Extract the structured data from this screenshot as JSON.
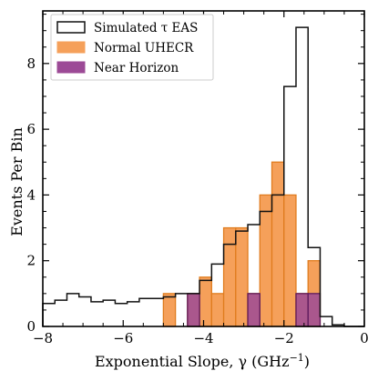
{
  "chart_data": {
    "type": "histogram",
    "xlabel": "Exponential Slope, γ (GHz",
    "xlabel_sup": "−1",
    "xlabel_close": ")",
    "ylabel": "Events Per Bin",
    "xlim": [
      -8,
      0
    ],
    "ylim": [
      0,
      9.6
    ],
    "xticks": [
      -8,
      -6,
      -4,
      -2,
      0
    ],
    "xtick_labels": [
      "−8",
      "−6",
      "−4",
      "−2",
      "0"
    ],
    "yticks": [
      0,
      2,
      4,
      6,
      8
    ],
    "ytick_labels": [
      "0",
      "2",
      "4",
      "6",
      "8"
    ],
    "legend_position": "top-left",
    "bin_edges": [
      -8.0,
      -7.7,
      -7.4,
      -7.1,
      -6.8,
      -6.5,
      -6.2,
      -5.9,
      -5.6,
      -5.3,
      -5.0,
      -4.7,
      -4.4,
      -4.1,
      -3.8,
      -3.5,
      -3.2,
      -2.9,
      -2.6,
      -2.3,
      -2.0,
      -1.7,
      -1.4,
      -1.1,
      -0.8,
      -0.5,
      -0.2,
      0.0
    ],
    "series": [
      {
        "name": "Normal UHECR",
        "style": "filled",
        "color": "#f5a05a",
        "edge_color": "#e07c1e",
        "values": [
          0,
          0,
          0,
          0,
          0,
          0,
          0,
          0,
          0,
          0,
          1,
          0,
          1,
          1.5,
          1,
          3,
          3,
          1,
          4,
          5,
          4,
          1,
          2,
          0,
          0,
          0,
          0
        ]
      },
      {
        "name": "Near Horizon",
        "style": "filled",
        "color": "#9c4a96",
        "edge_color": "#5e1a5c",
        "values": [
          0,
          0,
          0,
          0,
          0,
          0,
          0,
          0,
          0,
          0,
          0,
          0,
          1,
          0,
          0,
          0,
          0,
          1,
          0,
          0,
          0,
          1,
          1,
          0,
          0,
          0,
          0
        ]
      },
      {
        "name": "Simulated τ EAS",
        "style": "step",
        "color": "#111111",
        "values": [
          0.7,
          0.8,
          1.0,
          0.9,
          0.75,
          0.8,
          0.7,
          0.75,
          0.85,
          0.85,
          0.9,
          1.0,
          1.0,
          1.4,
          1.9,
          2.5,
          2.9,
          3.1,
          3.5,
          4.0,
          7.3,
          9.1,
          2.4,
          0.3,
          0.05,
          0.0,
          0.0
        ]
      }
    ]
  }
}
